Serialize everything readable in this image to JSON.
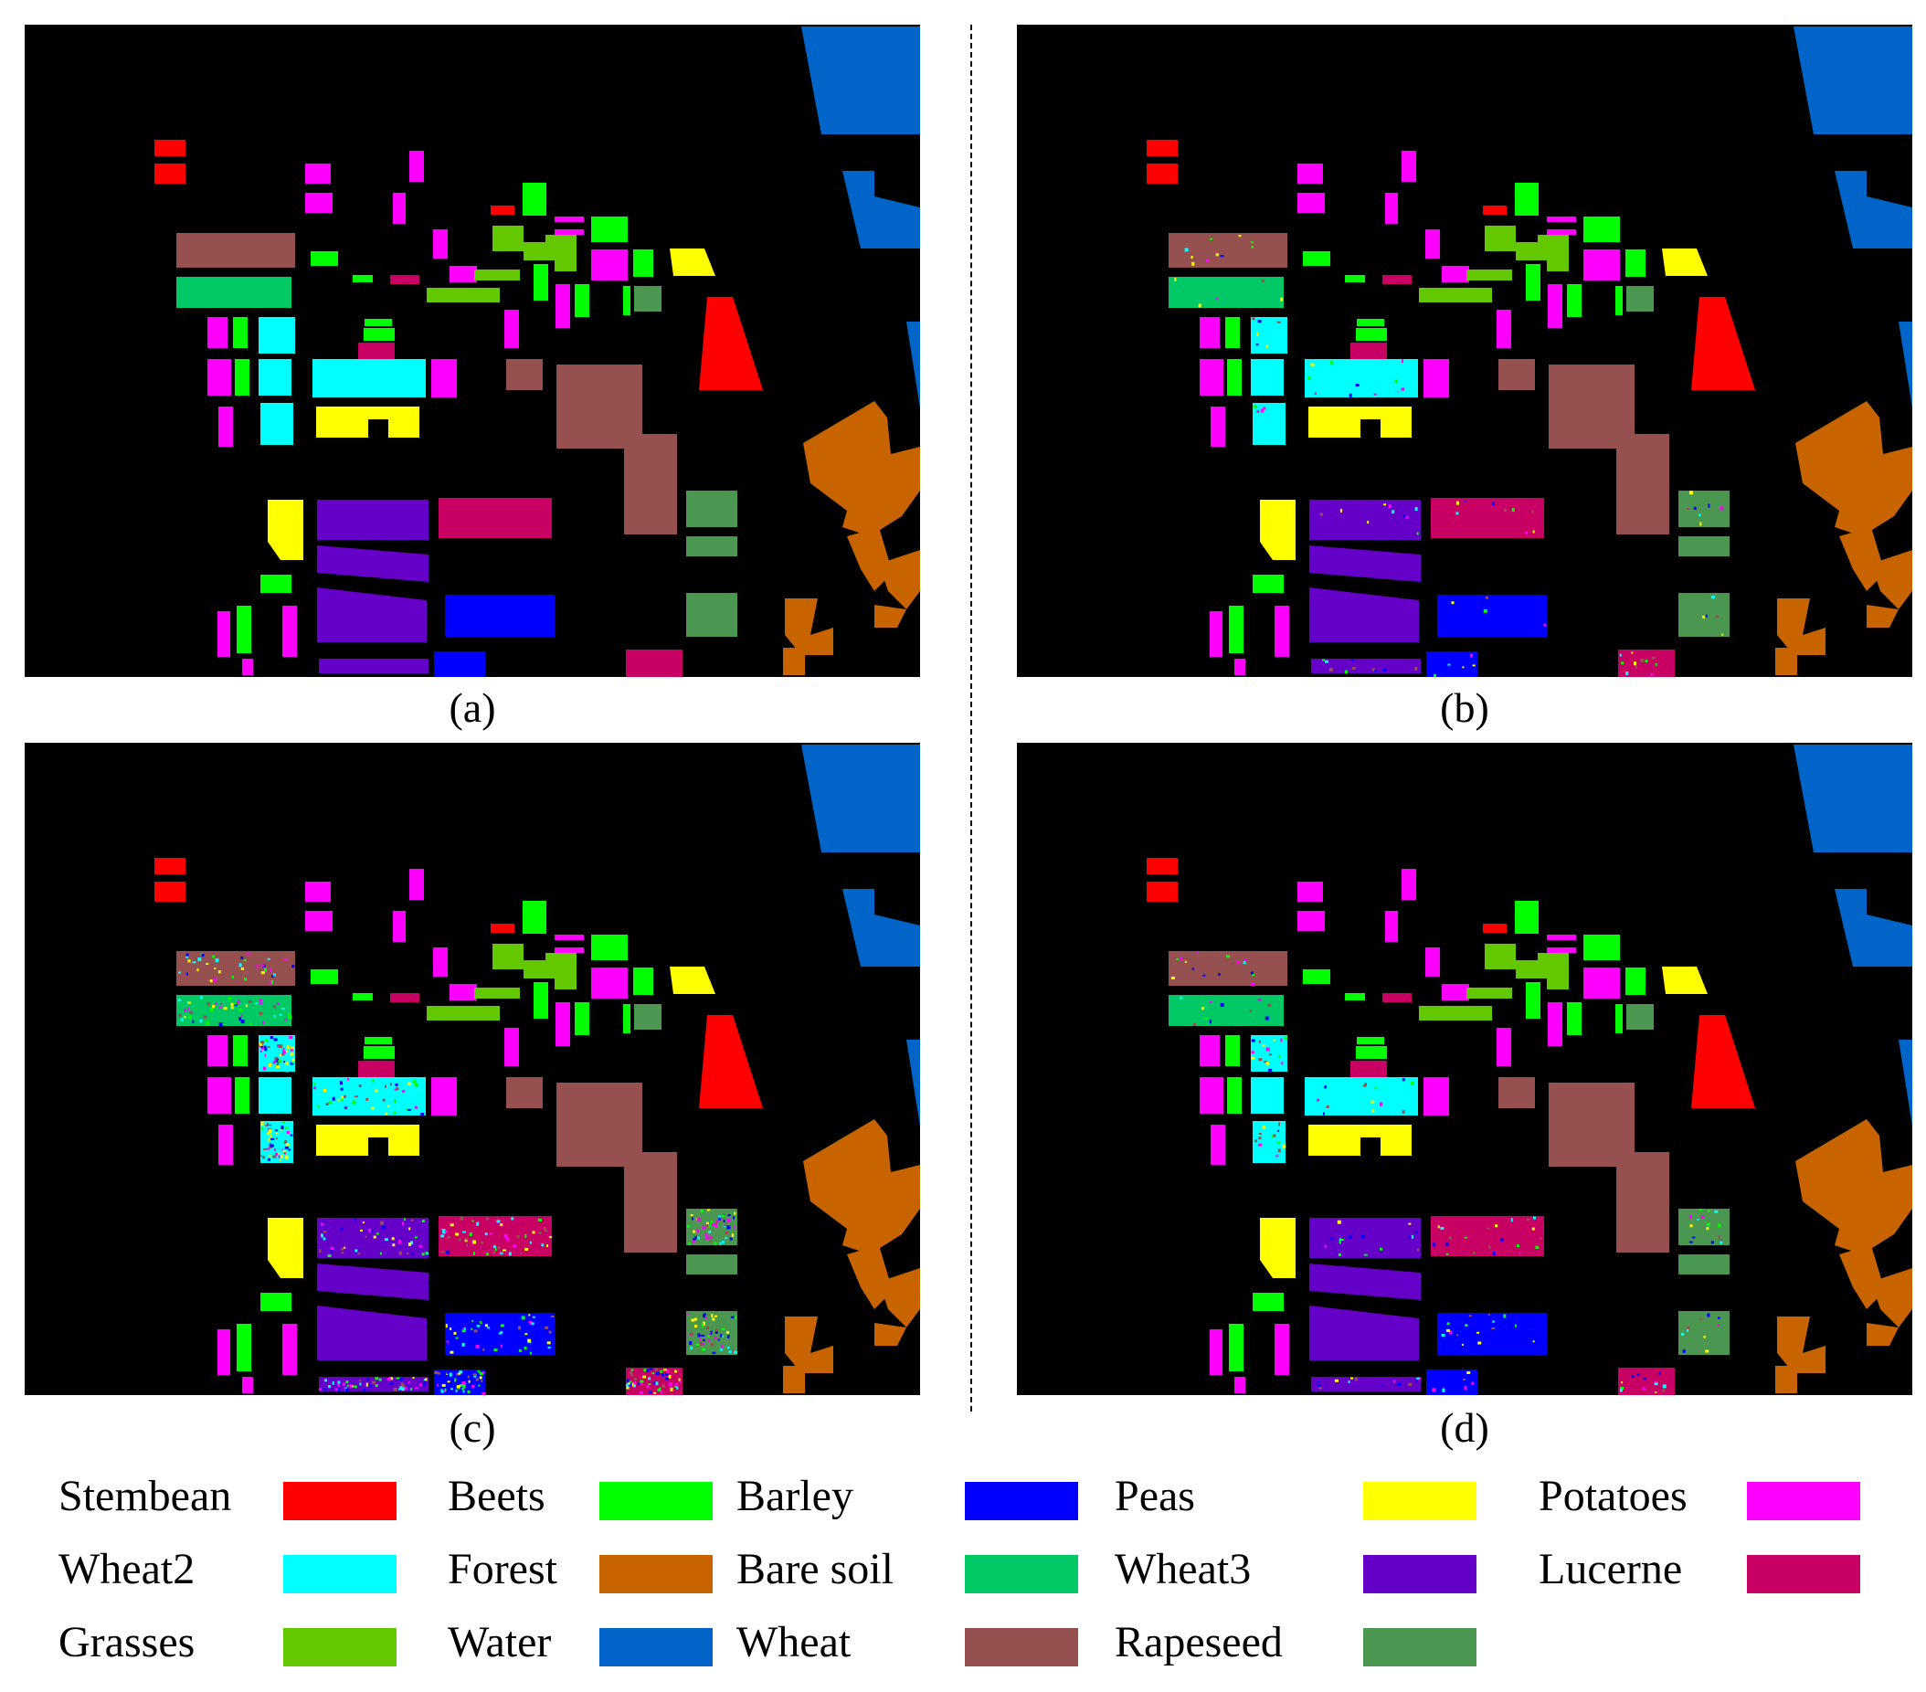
{
  "captions": {
    "a": "(a)",
    "b": "(b)",
    "c": "(c)",
    "d": "(d)"
  },
  "legend": [
    {
      "label": "Stembean",
      "color": "#ff0000"
    },
    {
      "label": "Beets",
      "color": "#00ff00"
    },
    {
      "label": "Barley",
      "color": "#0000ff"
    },
    {
      "label": "Peas",
      "color": "#ffff00"
    },
    {
      "label": "Potatoes",
      "color": "#ff00ff"
    },
    {
      "label": "Wheat2",
      "color": "#00ffff"
    },
    {
      "label": "Forest",
      "color": "#c86400"
    },
    {
      "label": "Bare soil",
      "color": "#00c864"
    },
    {
      "label": "Wheat3",
      "color": "#6400c8"
    },
    {
      "label": "Lucerne",
      "color": "#c80064"
    },
    {
      "label": "Grasses",
      "color": "#64c800"
    },
    {
      "label": "Water",
      "color": "#0064c8"
    },
    {
      "label": "Wheat",
      "color": "#965050"
    },
    {
      "label": "Rapeseed",
      "color": "#4b9650"
    }
  ]
}
